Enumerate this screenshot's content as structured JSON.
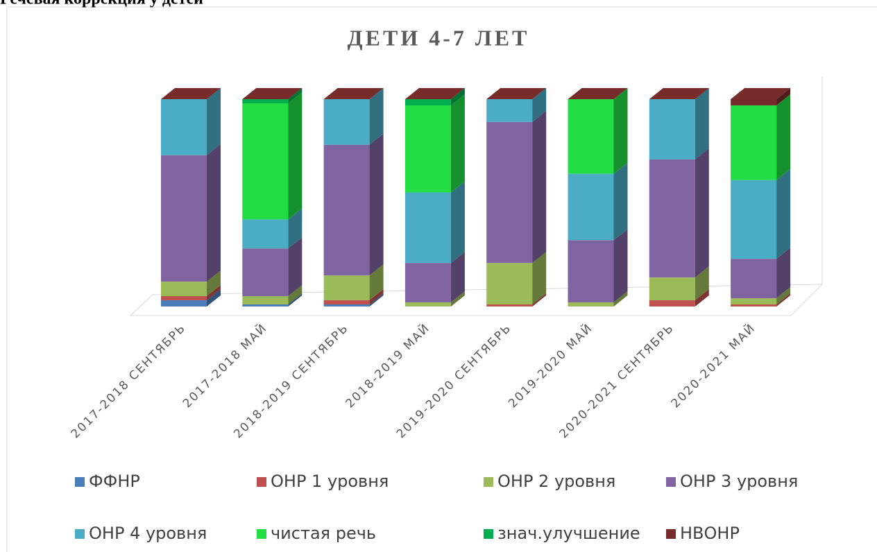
{
  "header": {
    "title": "Речевая коррекция у детей"
  },
  "chart_data": {
    "type": "bar3d_stacked",
    "title": "ДЕТИ 4-7 ЛЕТ",
    "categories": [
      "2017-2018 СЕНТЯБРЬ",
      "2017-2018 МАЙ",
      "2018-2019 СЕНТЯБРЬ",
      "2018-2019 МАЙ",
      "2019-2020 СЕНТЯБРЬ",
      "2019-2020 МАЙ",
      "2020-2021 СЕНТЯБРЬ",
      "2020-2021 МАЙ"
    ],
    "ylim": [
      0,
      100
    ],
    "series": [
      {
        "name": "ФФНР",
        "color": "#4a7ebb",
        "values": [
          3,
          1,
          1,
          0,
          0,
          0,
          0,
          0
        ]
      },
      {
        "name": "ОНР 1 уровня",
        "color": "#c0504d",
        "values": [
          2,
          0,
          2,
          0,
          1,
          0,
          3,
          1
        ]
      },
      {
        "name": "ОНР 2 уровня",
        "color": "#9bbb59",
        "values": [
          7,
          4,
          12,
          2,
          20,
          2,
          11,
          3
        ]
      },
      {
        "name": "ОНР 3 уровня",
        "color": "#8064a2",
        "values": [
          61,
          23,
          63,
          19,
          68,
          30,
          57,
          19
        ]
      },
      {
        "name": "ОНР 4 уровня",
        "color": "#4bacc6",
        "values": [
          27,
          14,
          22,
          34,
          11,
          32,
          29,
          38
        ]
      },
      {
        "name": "чистая речь",
        "color": "#22dd44",
        "values": [
          0,
          56,
          0,
          42,
          0,
          36,
          0,
          36
        ]
      },
      {
        "name": "знач.улучшение",
        "color": "#00b050",
        "values": [
          0,
          2,
          0,
          3,
          0,
          0,
          0,
          0
        ]
      },
      {
        "name": "НВОНР",
        "color": "#772c2a",
        "values": [
          0,
          0,
          0,
          0,
          0,
          0,
          0,
          3
        ]
      }
    ]
  }
}
